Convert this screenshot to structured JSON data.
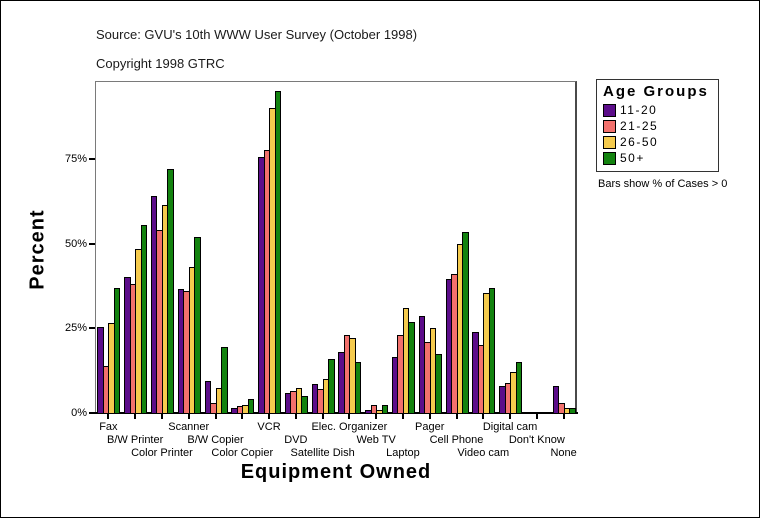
{
  "header": {
    "source": "Source: GVU's 10th WWW User Survey (October 1998)",
    "copyright": "Copyright 1998 GTRC"
  },
  "legend": {
    "title": "Age Groups",
    "note": "Bars show % of Cases > 0"
  },
  "chart_data": {
    "type": "bar",
    "title": "",
    "xlabel": "Equipment Owned",
    "ylabel": "Percent",
    "ylim": [
      0,
      98
    ],
    "yticks": [
      0,
      25,
      50,
      75
    ],
    "ytick_labels": [
      "0%",
      "25%",
      "50%",
      "75%"
    ],
    "grid": false,
    "legend_position": "right",
    "categories": [
      "Fax",
      "B/W Printer",
      "Color Printer",
      "Scanner",
      "B/W Copier",
      "Color Copier",
      "VCR",
      "DVD",
      "Satellite Dish",
      "Elec. Organizer",
      "Web TV",
      "Laptop",
      "Pager",
      "Cell Phone",
      "Video cam",
      "Digital cam",
      "Don't Know",
      "None"
    ],
    "series": [
      {
        "name": "11-20",
        "color": "#5C0D8A",
        "values": [
          25.5,
          40,
          64,
          36.5,
          9.5,
          1.5,
          75.5,
          6,
          8.5,
          18,
          1,
          16.5,
          28.5,
          39.5,
          24,
          8,
          0,
          8
        ]
      },
      {
        "name": "21-25",
        "color": "#F2716D",
        "values": [
          14,
          38,
          54,
          36,
          3,
          2,
          77.5,
          6.5,
          7,
          23,
          2.5,
          23,
          21,
          41,
          20,
          9,
          0,
          3
        ]
      },
      {
        "name": "26-50",
        "color": "#F5CB4E",
        "values": [
          26.5,
          48.5,
          61.5,
          43,
          7.5,
          2.5,
          90,
          7.5,
          10,
          22,
          1,
          31,
          25,
          50,
          35.5,
          12,
          0,
          1.5
        ]
      },
      {
        "name": "50+",
        "color": "#13830F",
        "values": [
          37,
          55.5,
          72,
          52,
          19.5,
          4,
          95,
          5,
          16,
          15,
          2.5,
          27,
          17.5,
          53.5,
          37,
          15,
          0,
          1.5
        ]
      }
    ]
  }
}
